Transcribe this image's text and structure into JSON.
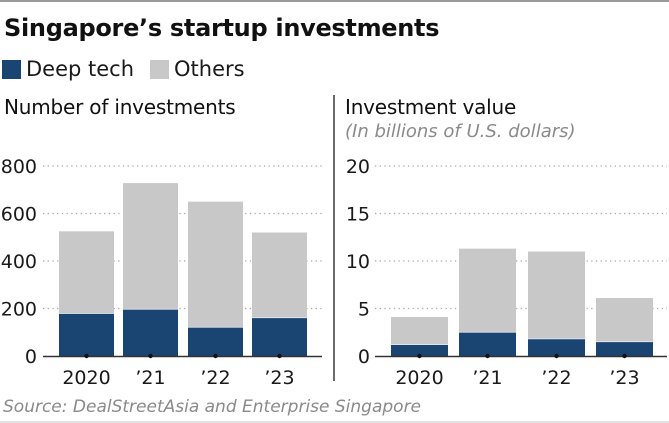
{
  "title": "Singapore’s startup investments",
  "legend": [
    {
      "label": "Deep tech",
      "color": "#1a4472"
    },
    {
      "label": "Others",
      "color": "#c8c8c8"
    }
  ],
  "source": "Source: DealStreetAsia and Enterprise Singapore",
  "colors": {
    "deep_tech": "#1a4472",
    "others": "#c8c8c8",
    "gridline": "#a8a8a8",
    "axis": "#333333",
    "tick_dot": "#111111"
  },
  "chart_data": [
    {
      "type": "bar",
      "stacked": true,
      "title": "Number of investments",
      "subtitle": "",
      "xlabel": "",
      "ylabel": "",
      "categories": [
        "2020",
        "’21",
        "’22",
        "’23"
      ],
      "series": [
        {
          "name": "Deep tech",
          "values": [
            179,
            197,
            121,
            161
          ]
        },
        {
          "name": "Others",
          "values": [
            346,
            531,
            529,
            359
          ]
        }
      ],
      "totals": [
        525,
        728,
        650,
        520
      ],
      "ylim": [
        0,
        800
      ],
      "yticks": [
        0,
        200,
        400,
        600,
        800
      ],
      "ytick_labels": [
        "0",
        "200",
        "400",
        "600",
        "800"
      ],
      "grid": true,
      "legend_position": "top-left"
    },
    {
      "type": "bar",
      "stacked": true,
      "title": "Investment value",
      "subtitle": "(In billions of U.S. dollars)",
      "xlabel": "",
      "ylabel": "",
      "categories": [
        "2020",
        "’21",
        "’22",
        "’23"
      ],
      "series": [
        {
          "name": "Deep tech",
          "values": [
            1.2,
            2.5,
            1.8,
            1.5
          ]
        },
        {
          "name": "Others",
          "values": [
            2.9,
            8.8,
            9.2,
            4.6
          ]
        }
      ],
      "totals": [
        4.1,
        11.3,
        11.0,
        6.1
      ],
      "ylim": [
        0,
        20
      ],
      "yticks": [
        0,
        5,
        10,
        15,
        20
      ],
      "ytick_labels": [
        "0",
        "5",
        "10",
        "15",
        "20"
      ],
      "grid": true,
      "legend_position": "top-left"
    }
  ]
}
